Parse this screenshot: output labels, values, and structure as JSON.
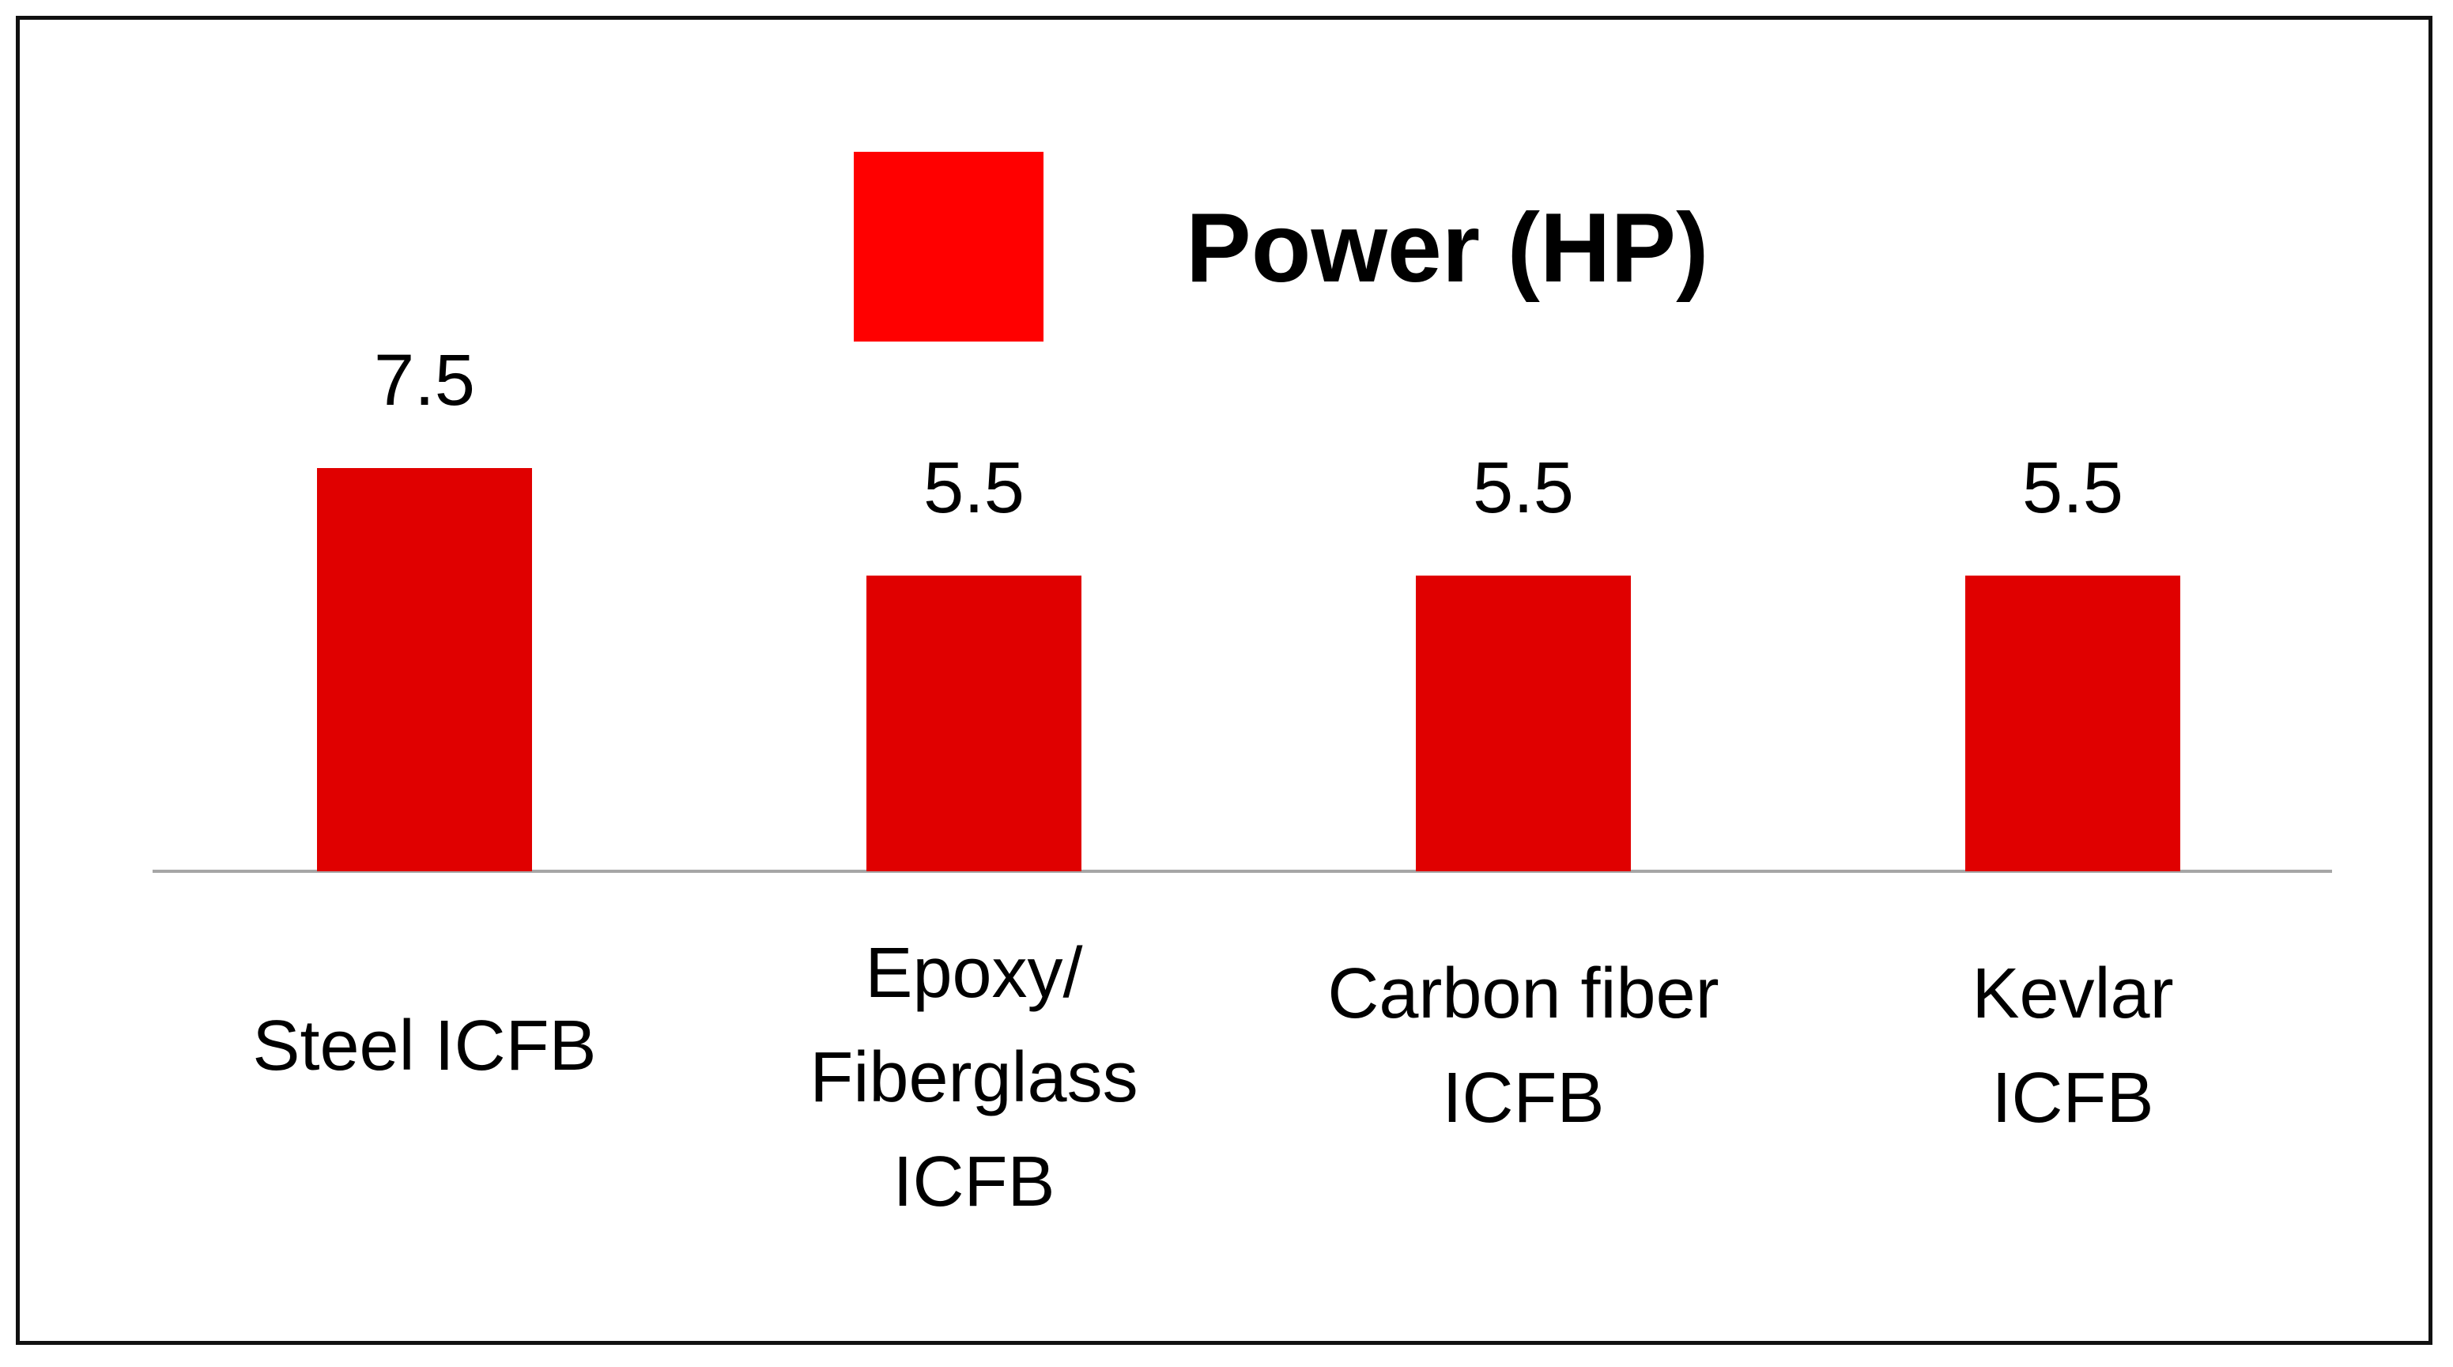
{
  "chart_data": {
    "type": "bar",
    "categories": [
      "Steel ICFB",
      "Epoxy/\nFiberglass\nICFB",
      "Carbon fiber\nICFB",
      "Kevlar\nICFB"
    ],
    "series": [
      {
        "name": "Power (HP)",
        "values": [
          7.5,
          5.5,
          5.5,
          5.5
        ],
        "color": "#e00000"
      }
    ],
    "data_labels": [
      "7.5",
      "5.5",
      "5.5",
      "5.5"
    ],
    "ylim": [
      0,
      10
    ],
    "grid": false,
    "legend_position": "top-center",
    "legend_swatch_color": "#ff0000",
    "axis_color": "#a6a6a6"
  }
}
